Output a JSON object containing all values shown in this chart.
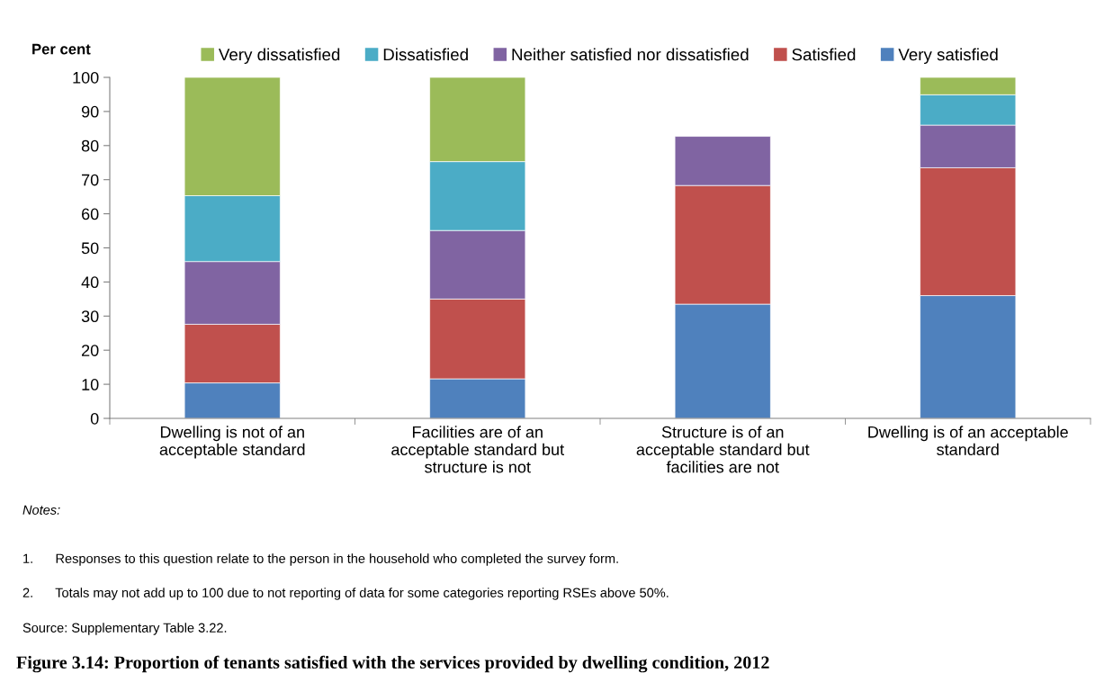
{
  "chart_data": {
    "type": "bar",
    "stacked": true,
    "title": "Figure 3.14: Proportion of tenants satisfied with the services provided by dwelling condition, 2012",
    "ylabel": "Per cent",
    "categories": [
      "Dwelling is not of an\nacceptable standard",
      "Facilities are of an\nacceptable standard but\nstructure is not",
      "Structure is of an\nacceptable standard but\nfacilities are not",
      "Dwelling is of an acceptable\nstandard"
    ],
    "series": [
      {
        "name": "Very satisfied",
        "color": "#4f81bd",
        "values": [
          10.4,
          11.6,
          33.5,
          36.0
        ]
      },
      {
        "name": "Satisfied",
        "color": "#c0504d",
        "values": [
          17.2,
          23.4,
          34.8,
          37.5
        ]
      },
      {
        "name": "Neither satisfied nor dissatisfied",
        "color": "#8064a2",
        "values": [
          18.4,
          20.1,
          14.4,
          12.5
        ]
      },
      {
        "name": "Dissatisfied",
        "color": "#4bacc6",
        "values": [
          19.3,
          20.2,
          null,
          8.9
        ]
      },
      {
        "name": "Very dissatisfied",
        "color": "#9bbb59",
        "values": [
          34.7,
          24.7,
          null,
          5.1
        ]
      }
    ],
    "ylim": [
      0,
      100
    ],
    "yticks": [
      0,
      10,
      20,
      30,
      40,
      50,
      60,
      70,
      80,
      90,
      100
    ],
    "grid": false,
    "legend": "top",
    "annotations": [
      "Notes:",
      "1.      Responses to this question relate to the person in the household who completed the survey form.",
      "2.      Totals may not add up to 100 due to not reporting of data for some categories reporting RSEs above 50%.",
      "Source: Supplementary Table 3.22."
    ]
  }
}
